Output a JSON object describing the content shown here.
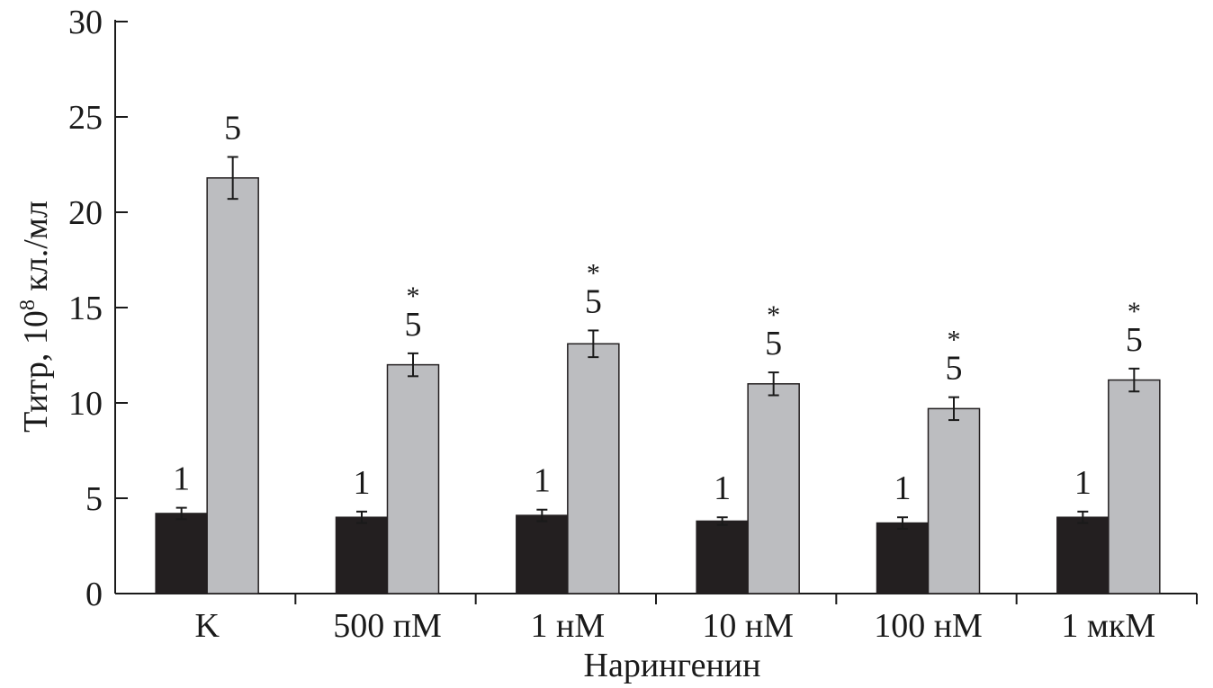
{
  "chart_data": {
    "type": "bar",
    "xlabel": "Нарингенин",
    "ylabel": "Титр, 10",
    "ylabel_superscript": "8",
    "ylabel_suffix": " кл./мл",
    "ylim": [
      0,
      30
    ],
    "yticks": [
      0,
      5,
      10,
      15,
      20,
      25,
      30
    ],
    "grid": false,
    "categories": [
      "K",
      "500 пМ",
      "1 нМ",
      "10 нМ",
      "100 нМ",
      "1 мкМ"
    ],
    "series": [
      {
        "label": "1",
        "color": "#231f20",
        "values": [
          4.2,
          4.0,
          4.1,
          3.8,
          3.7,
          4.0
        ],
        "errors": [
          0.3,
          0.3,
          0.3,
          0.2,
          0.3,
          0.3
        ],
        "significance": [
          "",
          "",
          "",
          "",
          "",
          ""
        ]
      },
      {
        "label": "5",
        "color": "#bcbdc0",
        "values": [
          21.8,
          12.0,
          13.1,
          11.0,
          9.7,
          11.2
        ],
        "errors": [
          1.1,
          0.6,
          0.7,
          0.6,
          0.6,
          0.6
        ],
        "significance": [
          "",
          "*",
          "*",
          "*",
          "*",
          "*"
        ]
      }
    ]
  }
}
